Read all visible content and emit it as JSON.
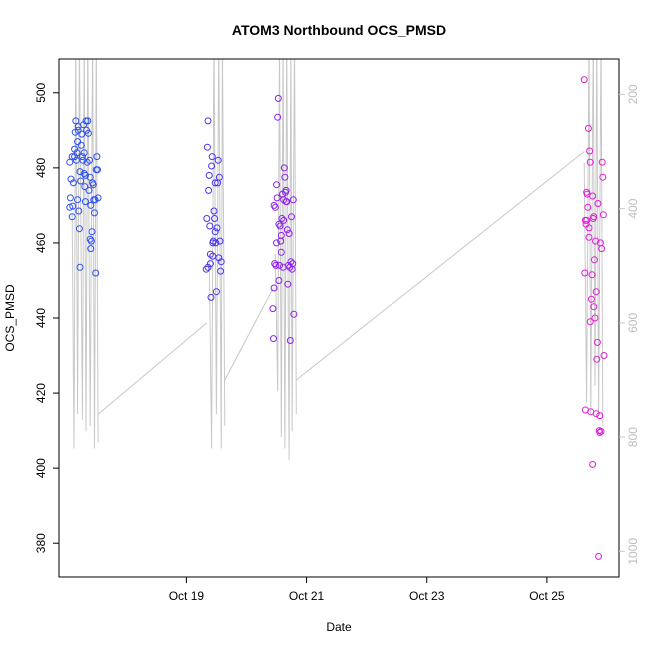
{
  "chart_data": {
    "type": "scatter",
    "title": "ATOM3 Northbound OCS_PMSD",
    "xlabel": "Date",
    "ylabel": "OCS_PMSD",
    "x_ticks": [
      "Oct 19",
      "Oct 21",
      "Oct 23",
      "Oct 25"
    ],
    "x_tick_values": [
      19,
      21,
      23,
      25
    ],
    "xlim": [
      16.88,
      26.2
    ],
    "ylim": [
      371,
      509
    ],
    "y_ticks": [
      380,
      400,
      420,
      440,
      460,
      480,
      500
    ],
    "y2_ticks": [
      200,
      400,
      600,
      800,
      1000
    ],
    "y2lim": [
      1045,
      138
    ],
    "grid": false,
    "legend": "none",
    "colors": {
      "early": "#2f50ef",
      "mid": "#8d22ef",
      "late": "#e11fd6",
      "secondary": "#c8c8c8",
      "axis": "#000000"
    },
    "series": [
      {
        "x": [
          17.06,
          17.07,
          17.08,
          17.1,
          17.11,
          17.12,
          17.14,
          17.15,
          17.16,
          17.17,
          17.18,
          17.19,
          17.19,
          17.2,
          17.21,
          17.22,
          17.23,
          17.23,
          17.24,
          17.25,
          17.26,
          17.27,
          17.28,
          17.29,
          17.3,
          17.31,
          17.32,
          17.32,
          17.33,
          17.34,
          17.35,
          17.36,
          17.37,
          17.38,
          17.39,
          17.4,
          17.41,
          17.41,
          17.42,
          17.43,
          17.44,
          17.45,
          17.46,
          17.47,
          17.48,
          17.49,
          17.5,
          17.51,
          17.52,
          17.53,
          17.06,
          17.1,
          17.14,
          17.2,
          17.3,
          17.4
        ],
        "y": [
          469.5,
          472,
          477,
          467,
          469.8,
          476,
          483,
          489.5,
          492.5,
          482,
          484,
          487,
          471.5,
          491,
          468.5,
          463.8,
          453.5,
          479,
          476.5,
          486,
          489,
          483,
          482,
          491.5,
          484,
          475,
          478,
          471,
          492.5,
          490,
          481.5,
          492.5,
          489.2,
          474,
          482,
          477.5,
          470,
          458.5,
          460.5,
          463,
          476,
          475.5,
          471.5,
          468,
          471.5,
          452,
          479.5,
          483,
          479.5,
          472,
          481.5,
          483,
          485,
          490,
          478.5,
          461
        ],
        "color": "#2f50ef"
      },
      {
        "x": [
          19.33,
          19.34,
          19.35,
          19.36,
          19.37,
          19.38,
          19.39,
          19.4,
          19.41,
          19.42,
          19.43,
          19.44,
          19.45,
          19.46,
          19.47,
          19.48,
          19.49,
          19.5,
          19.51,
          19.52,
          19.53,
          19.54,
          19.55,
          19.56,
          19.57,
          19.58,
          19.36,
          19.4,
          19.44,
          19.48
        ],
        "y": [
          453,
          466.5,
          485.5,
          492.5,
          474,
          478,
          464.5,
          454.5,
          445.5,
          480.5,
          483,
          456.5,
          460.5,
          468.5,
          466.5,
          476,
          460,
          447,
          464,
          476,
          482,
          456,
          477.5,
          460.5,
          452.5,
          455,
          453.5,
          457,
          460,
          463
        ],
        "color": "#4936ef"
      },
      {
        "x": [
          20.44,
          20.45,
          20.46,
          20.47,
          20.48,
          20.49,
          20.5,
          20.51,
          20.52,
          20.53,
          20.54,
          20.55,
          20.56,
          20.57,
          20.58,
          20.59,
          20.6,
          20.61,
          20.62,
          20.63,
          20.64,
          20.65,
          20.66,
          20.67,
          20.68,
          20.69,
          20.7,
          20.71,
          20.72,
          20.73,
          20.74,
          20.75,
          20.76,
          20.77,
          20.78,
          20.79,
          20.46,
          20.5,
          20.54,
          20.58,
          20.62,
          20.66
        ],
        "y": [
          442.5,
          434.5,
          448,
          454.5,
          469.5,
          454,
          475.5,
          472,
          493.5,
          498.5,
          465,
          454,
          464.5,
          460.5,
          457.5,
          466.5,
          473,
          453.5,
          471.5,
          480,
          477.5,
          473.5,
          471,
          471,
          463.5,
          449,
          454,
          462.5,
          453.5,
          434,
          455,
          467,
          453,
          454.5,
          471.5,
          441,
          470,
          460,
          450,
          462,
          466,
          474
        ],
        "color": "#8d22ef"
      },
      {
        "x": [
          25.62,
          25.63,
          25.64,
          25.65,
          25.66,
          25.67,
          25.68,
          25.69,
          25.7,
          25.71,
          25.72,
          25.73,
          25.74,
          25.75,
          25.76,
          25.77,
          25.78,
          25.79,
          25.8,
          25.81,
          25.82,
          25.83,
          25.84,
          25.85,
          25.86,
          25.87,
          25.88,
          25.89,
          25.9,
          25.91,
          25.92,
          25.93,
          25.94,
          25.95,
          25.64,
          25.7,
          25.76,
          25.82,
          25.88,
          25.66,
          25.72,
          25.78
        ],
        "y": [
          503.5,
          452,
          466,
          465,
          473.5,
          473,
          469.5,
          490.5,
          461.5,
          484.5,
          481.5,
          415,
          445,
          451.5,
          472.5,
          466.5,
          467,
          455.5,
          440,
          460.5,
          414.5,
          429,
          433.5,
          470.5,
          376.5,
          410,
          409.5,
          460,
          409.8,
          458.5,
          481.5,
          477.5,
          467.5,
          430,
          415.5,
          464,
          401,
          447,
          414,
          466,
          439,
          443
        ],
        "color": "#e11fd6"
      }
    ]
  }
}
